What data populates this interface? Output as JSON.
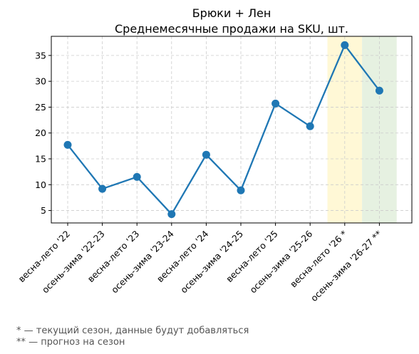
{
  "chart_data": {
    "type": "line",
    "title": "Брюки + Лен",
    "subtitle": "Среднемесячные продажи на SKU, шт.",
    "categories": [
      "весна-лето '22",
      "осень-зима '22-23",
      "весна-лето '23",
      "осень-зима '23-24",
      "весна-лето '24",
      "осень-зима '24-25",
      "весна-лето '25",
      "осень-зима '25-26",
      "весна-лето '26 *",
      "осень-зима '26-27 **"
    ],
    "series": [
      {
        "values": [
          17.7,
          9.2,
          11.5,
          4.3,
          15.8,
          8.9,
          25.7,
          21.3,
          37.0,
          28.2
        ]
      }
    ],
    "yticks": [
      5,
      10,
      15,
      20,
      25,
      30,
      35
    ],
    "ylim": [
      2.6,
      38.7
    ],
    "grid": true,
    "highlights": [
      {
        "category_index": 8,
        "color": "#fff8d6"
      },
      {
        "category_index": 9,
        "color": "#e6f1e1"
      }
    ],
    "line_color": "#1f77b4"
  },
  "footnotes": {
    "current": "* — текущий сезон, данные будут добавляться",
    "forecast": "** — прогноз на сезон"
  }
}
